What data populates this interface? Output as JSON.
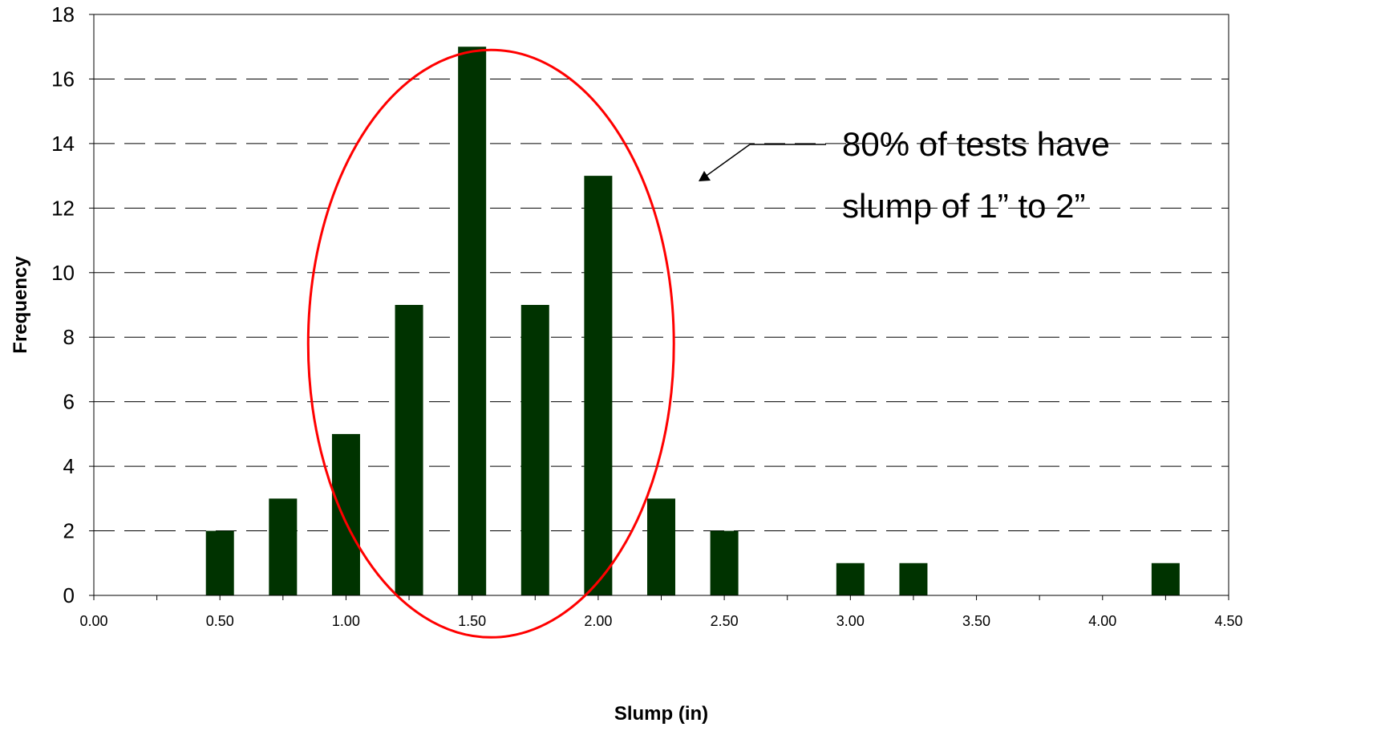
{
  "chart_data": {
    "type": "bar",
    "xlabel": "Slump (in)",
    "ylabel": "Frequency",
    "xlim": [
      0,
      4.5
    ],
    "ylim": [
      0,
      18
    ],
    "x_ticks": [
      "0.00",
      "0.50",
      "1.00",
      "1.50",
      "2.00",
      "2.50",
      "3.00",
      "3.50",
      "4.00",
      "4.50"
    ],
    "y_ticks": [
      "0",
      "2",
      "4",
      "6",
      "8",
      "10",
      "12",
      "14",
      "16",
      "18"
    ],
    "x": [
      0.5,
      0.75,
      1.0,
      1.25,
      1.5,
      1.75,
      2.0,
      2.25,
      2.5,
      3.0,
      3.25,
      4.25
    ],
    "values": [
      2,
      3,
      5,
      9,
      17,
      9,
      13,
      3,
      2,
      1,
      1,
      1
    ],
    "bar_color": "#003300",
    "grid": "horizontal dashed",
    "annotation": {
      "lines": [
        "80% of tests have",
        "slump of 1” to 2”"
      ],
      "ellipse_color": "#ff0000",
      "ellipse_x_range": [
        0.85,
        2.3
      ],
      "ellipse_y_range": [
        -1.3,
        16.9
      ]
    }
  }
}
